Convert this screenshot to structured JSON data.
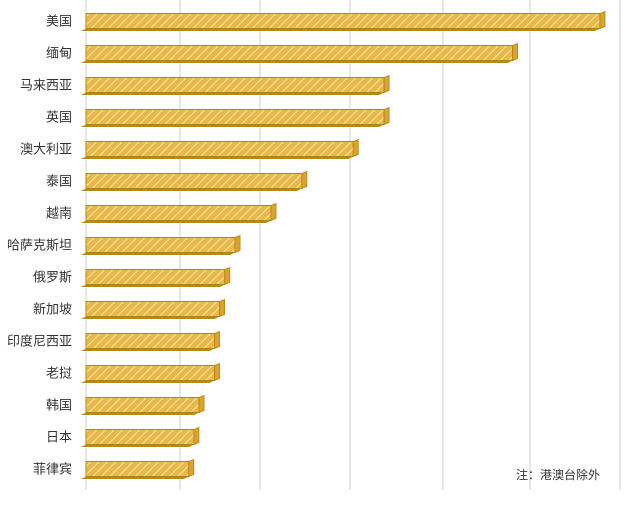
{
  "chart_data": {
    "type": "bar",
    "orientation": "horizontal",
    "categories": [
      "美国",
      "缅甸",
      "马来西亚",
      "英国",
      "澳大利亚",
      "泰国",
      "越南",
      "哈萨克斯坦",
      "俄罗斯",
      "新加坡",
      "印度尼西亚",
      "老挝",
      "韩国",
      "日本",
      "菲律宾"
    ],
    "values": [
      100,
      83,
      58,
      58,
      52,
      42,
      36,
      29,
      27,
      26,
      25,
      25,
      22,
      21,
      20
    ],
    "xlim": [
      0,
      100
    ],
    "grid": true,
    "note": "注：港澳台除外",
    "bar_color": "#E5B23C",
    "bar_edge_color": "#B8860B"
  }
}
